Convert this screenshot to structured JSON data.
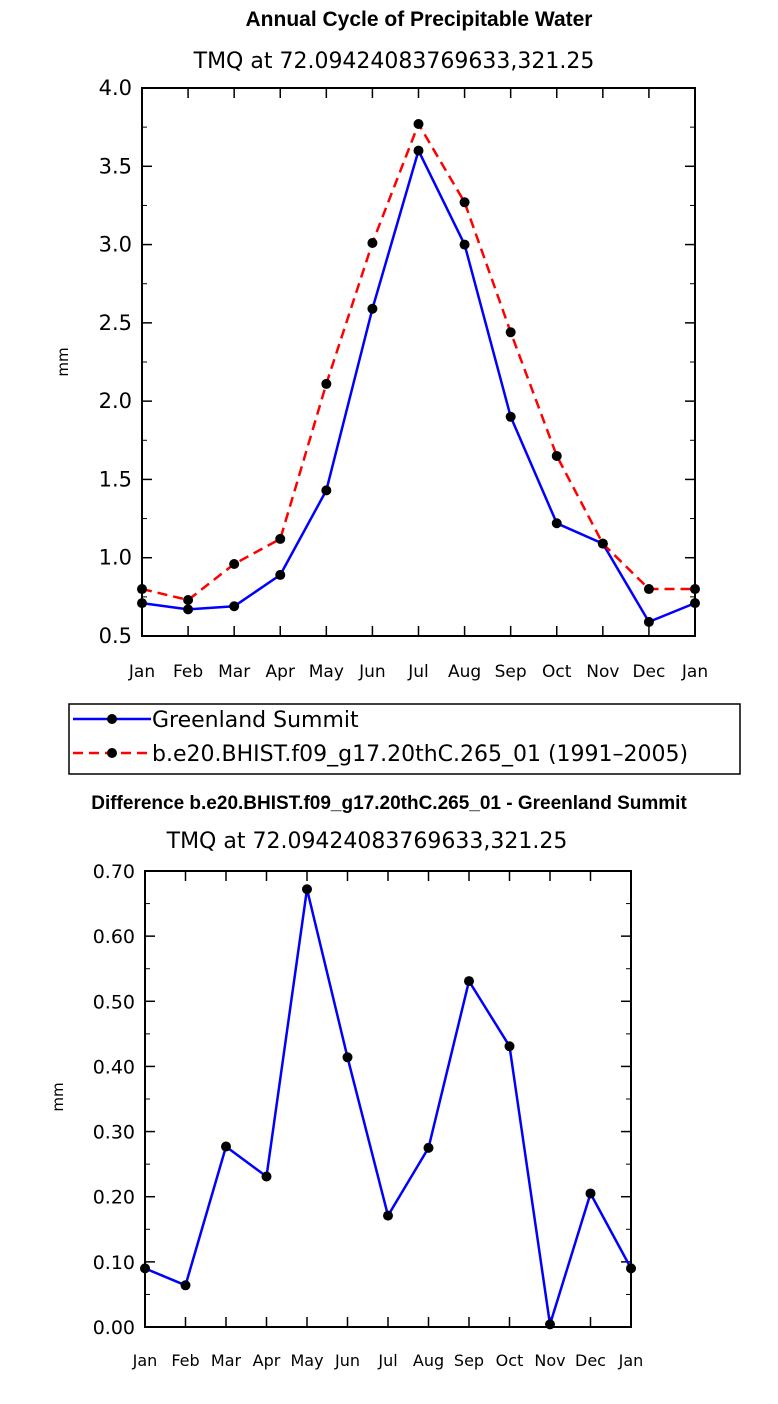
{
  "chart_data": [
    {
      "type": "line",
      "title": "Annual Cycle of Precipitable Water",
      "subtitle": "TMQ at 72.09424083769633,321.25",
      "xlabel": "",
      "ylabel": "mm",
      "categories": [
        "Jan",
        "Feb",
        "Mar",
        "Apr",
        "May",
        "Jun",
        "Jul",
        "Aug",
        "Sep",
        "Oct",
        "Nov",
        "Dec",
        "Jan"
      ],
      "ylim": [
        0.5,
        4.0
      ],
      "yticks": [
        0.5,
        1.0,
        1.5,
        2.0,
        2.5,
        3.0,
        3.5,
        4.0
      ],
      "ytick_labels": [
        "0.5",
        "1.0",
        "1.5",
        "2.0",
        "2.5",
        "3.0",
        "3.5",
        "4.0"
      ],
      "grid": false,
      "legend_position": "below",
      "series": [
        {
          "name": "Greenland Summit",
          "color": "#0000ff",
          "dash": "solid",
          "values": [
            0.71,
            0.67,
            0.69,
            0.89,
            1.43,
            2.59,
            3.6,
            3.0,
            1.9,
            1.22,
            1.09,
            0.59,
            0.71
          ]
        },
        {
          "name": "b.e20.BHIST.f09_g17.20thC.265_01 (1991–2005)",
          "color": "#ff0000",
          "dash": "dashed",
          "values": [
            0.8,
            0.73,
            0.96,
            1.12,
            2.11,
            3.01,
            3.77,
            3.27,
            2.44,
            1.65,
            1.09,
            0.8,
            0.8
          ]
        }
      ]
    },
    {
      "type": "line",
      "title": "Difference b.e20.BHIST.f09_g17.20thC.265_01 - Greenland Summit",
      "subtitle": "TMQ at 72.09424083769633,321.25",
      "xlabel": "",
      "ylabel": "mm",
      "categories": [
        "Jan",
        "Feb",
        "Mar",
        "Apr",
        "May",
        "Jun",
        "Jul",
        "Aug",
        "Sep",
        "Oct",
        "Nov",
        "Dec",
        "Jan"
      ],
      "ylim": [
        0.0,
        0.7
      ],
      "yticks": [
        0.0,
        0.1,
        0.2,
        0.3,
        0.4,
        0.5,
        0.6,
        0.7
      ],
      "ytick_labels": [
        "0.00",
        "0.10",
        "0.20",
        "0.30",
        "0.40",
        "0.50",
        "0.60",
        "0.70"
      ],
      "grid": false,
      "series": [
        {
          "color": "#0000ff",
          "dash": "solid",
          "values": [
            0.09,
            0.064,
            0.277,
            0.231,
            0.672,
            0.414,
            0.171,
            0.275,
            0.531,
            0.431,
            0.004,
            0.205,
            0.09
          ]
        }
      ]
    }
  ]
}
